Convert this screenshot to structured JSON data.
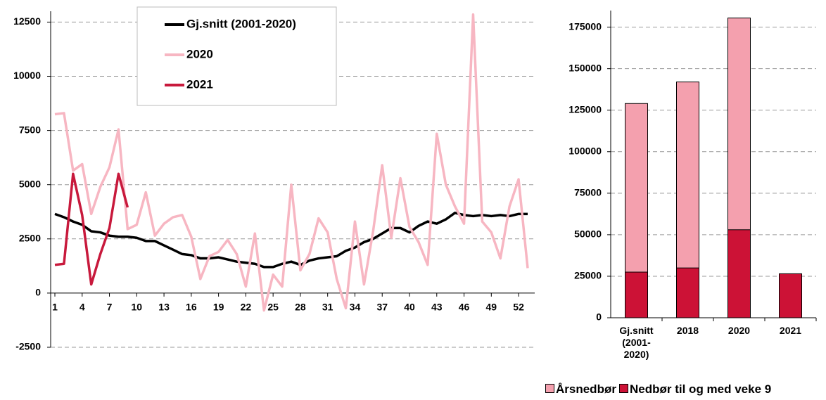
{
  "chart_data": [
    {
      "type": "line",
      "x": [
        1,
        2,
        3,
        4,
        5,
        6,
        7,
        8,
        9,
        10,
        11,
        12,
        13,
        14,
        15,
        16,
        17,
        18,
        19,
        20,
        21,
        22,
        23,
        24,
        25,
        26,
        27,
        28,
        29,
        30,
        31,
        32,
        33,
        34,
        35,
        36,
        37,
        38,
        39,
        40,
        41,
        42,
        43,
        44,
        45,
        46,
        47,
        48,
        49,
        50,
        51,
        52,
        53
      ],
      "series": [
        {
          "name": "Gj.snitt (2001-2020)",
          "color": "#000000",
          "values": [
            3650,
            3500,
            3300,
            3150,
            2850,
            2800,
            2650,
            2600,
            2600,
            2550,
            2400,
            2400,
            2200,
            2000,
            1800,
            1750,
            1600,
            1600,
            1650,
            1550,
            1450,
            1400,
            1350,
            1200,
            1200,
            1350,
            1450,
            1300,
            1500,
            1600,
            1650,
            1700,
            1950,
            2100,
            2350,
            2500,
            2750,
            3000,
            3000,
            2800,
            3100,
            3300,
            3200,
            3400,
            3700,
            3600,
            3550,
            3600,
            3550,
            3600,
            3550,
            3650,
            3650
          ]
        },
        {
          "name": "2020",
          "color": "#f7b6c2",
          "values": [
            8250,
            8300,
            5650,
            5950,
            3650,
            4900,
            5800,
            7550,
            2950,
            3150,
            4650,
            2650,
            3200,
            3500,
            3600,
            2600,
            650,
            1700,
            1900,
            2450,
            1800,
            300,
            2750,
            -800,
            850,
            300,
            5000,
            1050,
            1800,
            3450,
            2800,
            650,
            -700,
            3300,
            400,
            2850,
            5900,
            2550,
            5300,
            3050,
            2350,
            1300,
            7350,
            5000,
            4000,
            3200,
            12850,
            3300,
            2800,
            1600,
            4000,
            5250,
            1150
          ]
        },
        {
          "name": "2021",
          "color": "#c8193c",
          "values": [
            1300,
            1350,
            5500,
            3600,
            400,
            1800,
            3000,
            5500,
            3950,
            null,
            null,
            null,
            null,
            null,
            null,
            null,
            null,
            null,
            null,
            null,
            null,
            null,
            null,
            null,
            null,
            null,
            null,
            null,
            null,
            null,
            null,
            null,
            null,
            null,
            null,
            null,
            null,
            null,
            null,
            null,
            null,
            null,
            null,
            null,
            null,
            null,
            null,
            null,
            null,
            null,
            null,
            null,
            null
          ]
        }
      ],
      "xlim": [
        1,
        53
      ],
      "xticks": [
        1,
        4,
        7,
        10,
        13,
        16,
        19,
        22,
        25,
        28,
        31,
        34,
        37,
        40,
        43,
        46,
        49,
        52
      ],
      "ylim": [
        -2500,
        13000
      ],
      "yticks": [
        -2500,
        0,
        2500,
        5000,
        7500,
        10000,
        12500
      ],
      "grid": true,
      "legend": "top"
    },
    {
      "type": "bar",
      "categories": [
        "Gj.snitt (2001-2020)",
        "2018",
        "2020",
        "2021"
      ],
      "series": [
        {
          "name": "Årsnedbør",
          "color": "#f4a0ae",
          "values": [
            129000,
            142000,
            180500,
            null
          ]
        },
        {
          "name": "Nedbør til og med veke 9",
          "color": "#cc1236",
          "values": [
            27500,
            30000,
            53000,
            26500
          ]
        }
      ],
      "ylim": [
        0,
        185000
      ],
      "yticks": [
        0,
        25000,
        50000,
        75000,
        100000,
        125000,
        150000,
        175000
      ],
      "grid": true,
      "legend": "bottom"
    }
  ]
}
